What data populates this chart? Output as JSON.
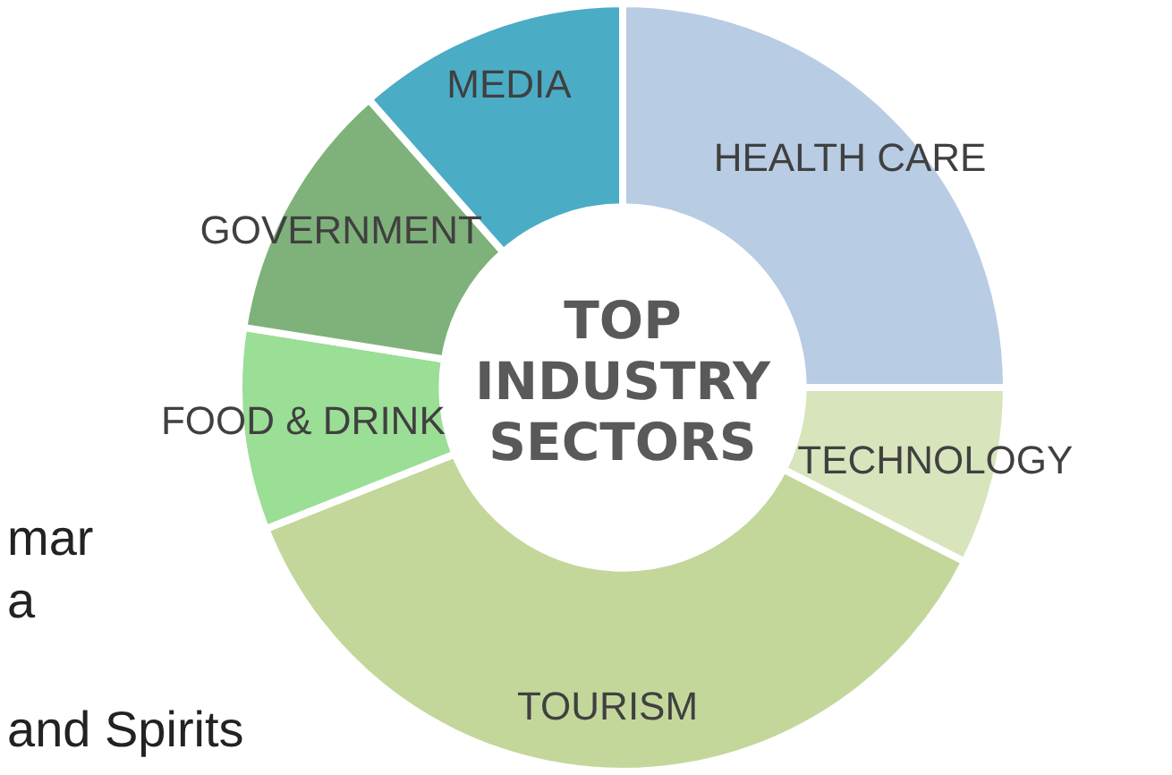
{
  "chart_data": {
    "type": "donut",
    "title": "TOP INDUSTRY SECTORS",
    "categories": [
      "HEALTH CARE",
      "TECHNOLOGY",
      "TOURISM",
      "FOOD & DRINK",
      "GOVERNMENT",
      "MEDIA"
    ],
    "values": [
      25,
      7.5,
      36.5,
      8.5,
      11,
      11.5
    ],
    "colors": [
      "#b8cce4",
      "#d8e4bc",
      "#c4d79b",
      "#9bde96",
      "#7fb27a",
      "#4bacc6"
    ],
    "annotations": [
      "mar",
      "a",
      "and Spirits"
    ],
    "legend": false
  }
}
